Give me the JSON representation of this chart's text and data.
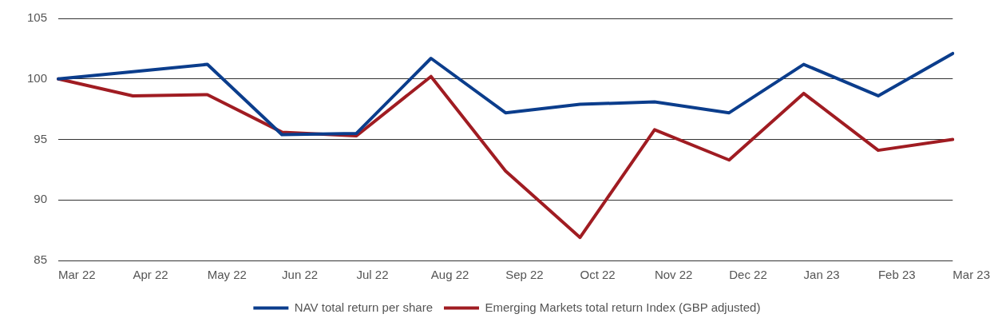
{
  "chart_data": {
    "type": "line",
    "categories": [
      "Mar 22",
      "Apr 22",
      "May 22",
      "Jun 22",
      "Jul 22",
      "Aug 22",
      "Sep 22",
      "Oct 22",
      "Nov 22",
      "Dec 22",
      "Jan 23",
      "Feb 23",
      "Mar 23"
    ],
    "series": [
      {
        "name": "NAV total return per share",
        "color": "#0b3d8c",
        "values": [
          100,
          100.6,
          101.2,
          95.4,
          95.5,
          101.7,
          97.2,
          97.9,
          98.1,
          97.2,
          101.2,
          98.6,
          102.1
        ]
      },
      {
        "name": "Emerging Markets total return Index (GBP adjusted)",
        "color": "#a01c22",
        "values": [
          100,
          98.6,
          98.7,
          95.6,
          95.3,
          100.2,
          92.4,
          86.9,
          95.8,
          93.3,
          98.8,
          94.1,
          95.0
        ]
      }
    ],
    "ylim": [
      85,
      105
    ],
    "yticks": [
      85,
      90,
      95,
      100,
      105
    ],
    "grid": "y",
    "legend": "bottom",
    "marker": "none",
    "line_style": "solid"
  }
}
